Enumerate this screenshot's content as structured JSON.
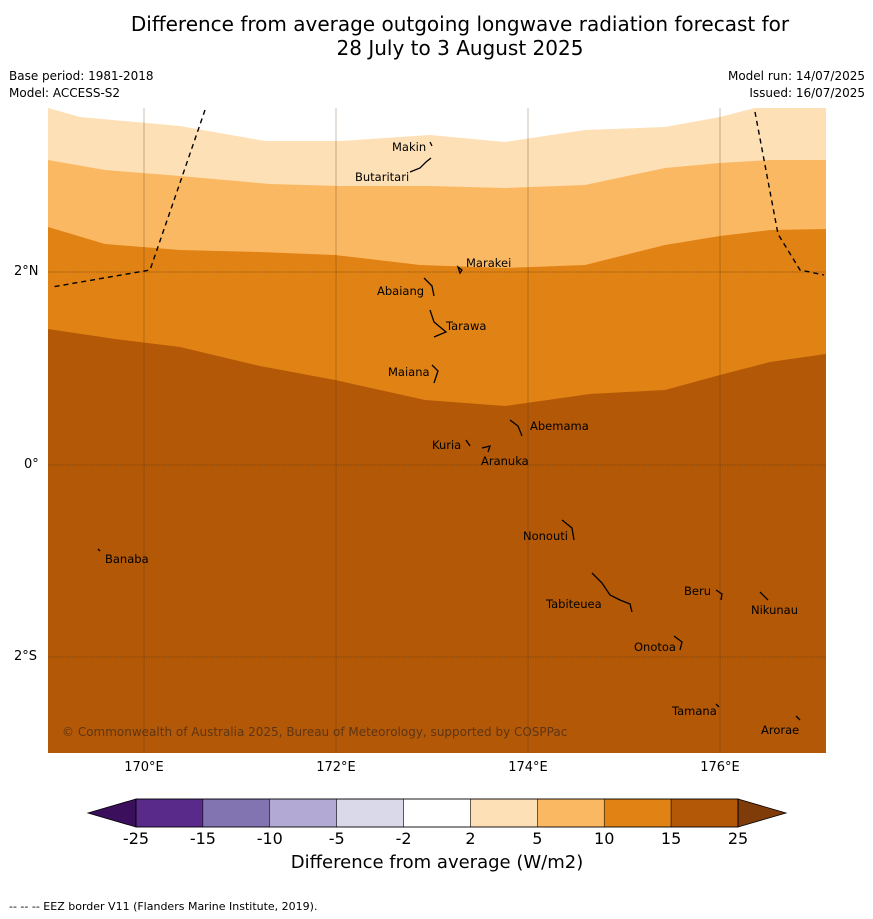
{
  "title_line1": "Difference from average outgoing longwave radiation forecast for",
  "title_line2": "28 July to 3 August 2025",
  "base_period": "Base period: 1981-2018",
  "model": "Model: ACCESS-S2",
  "model_run": "Model run: 14/07/2025",
  "issued": "Issued: 16/07/2025",
  "latitude_labels": [
    "2°N",
    "0°",
    "2°S"
  ],
  "longitude_labels": [
    "170°E",
    "172°E",
    "174°E",
    "176°E"
  ],
  "copyright": "© Commonwealth of Australia 2025, Bureau of Meteorology, supported by COSPPac",
  "places": [
    "Makin",
    "Butaritari",
    "Marakei",
    "Abaiang",
    "Tarawa",
    "Maiana",
    "Abemama",
    "Kuria",
    "Aranuka",
    "Nonouti",
    "Banaba",
    "Tabiteuea",
    "Beru",
    "Nikunau",
    "Onotoa",
    "Tamana",
    "Arorae"
  ],
  "colorbar": {
    "title": "Difference from average (W/m2)",
    "ticks": [
      "-25",
      "-15",
      "-10",
      "-5",
      "-2",
      "2",
      "5",
      "10",
      "15",
      "25"
    ],
    "colors": [
      "#592a8a",
      "#8273b1",
      "#b2aad4",
      "#d9d9ea",
      "#ffffff",
      "#fee0b6",
      "#fbb862",
      "#e08214",
      "#b35806"
    ],
    "extend_low_color": "#3b0f5c",
    "extend_high_color": "#7f3b08"
  },
  "footer": "--  --  -- EEZ border V11 (Flanders Marine Institute, 2019)."
}
